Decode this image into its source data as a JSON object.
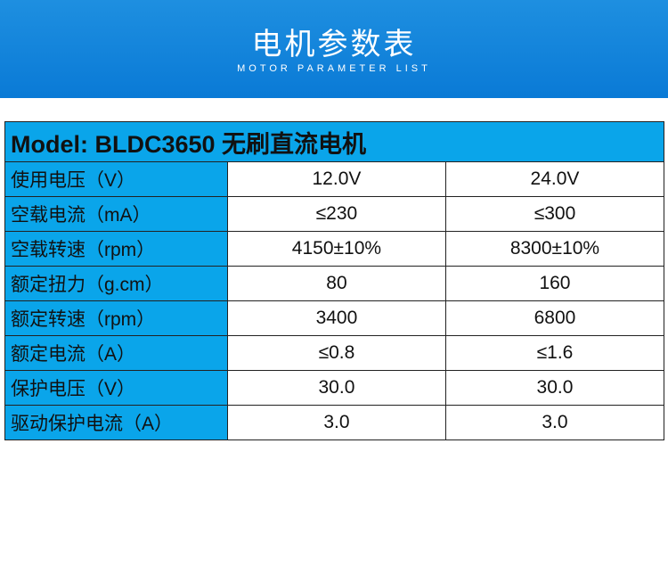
{
  "header": {
    "title": "电机参数表",
    "subtitle": "MOTOR PARAMETER LIST"
  },
  "table": {
    "title": "Model: BLDC3650 无刷直流电机",
    "rows": [
      [
        "使用电压（V）",
        "12.0V",
        "24.0V"
      ],
      [
        "空载电流（mA）",
        "≤230",
        "≤300"
      ],
      [
        "空载转速（rpm）",
        "4150±10%",
        "8300±10%"
      ],
      [
        "额定扭力（g.cm）",
        "80",
        "160"
      ],
      [
        "额定转速（rpm）",
        "3400",
        "6800"
      ],
      [
        "额定电流（A）",
        "≤0.8",
        "≤1.6"
      ],
      [
        "保护电压（V）",
        "30.0",
        "30.0"
      ],
      [
        "驱动保护电流（A）",
        "3.0",
        "3.0"
      ]
    ]
  }
}
